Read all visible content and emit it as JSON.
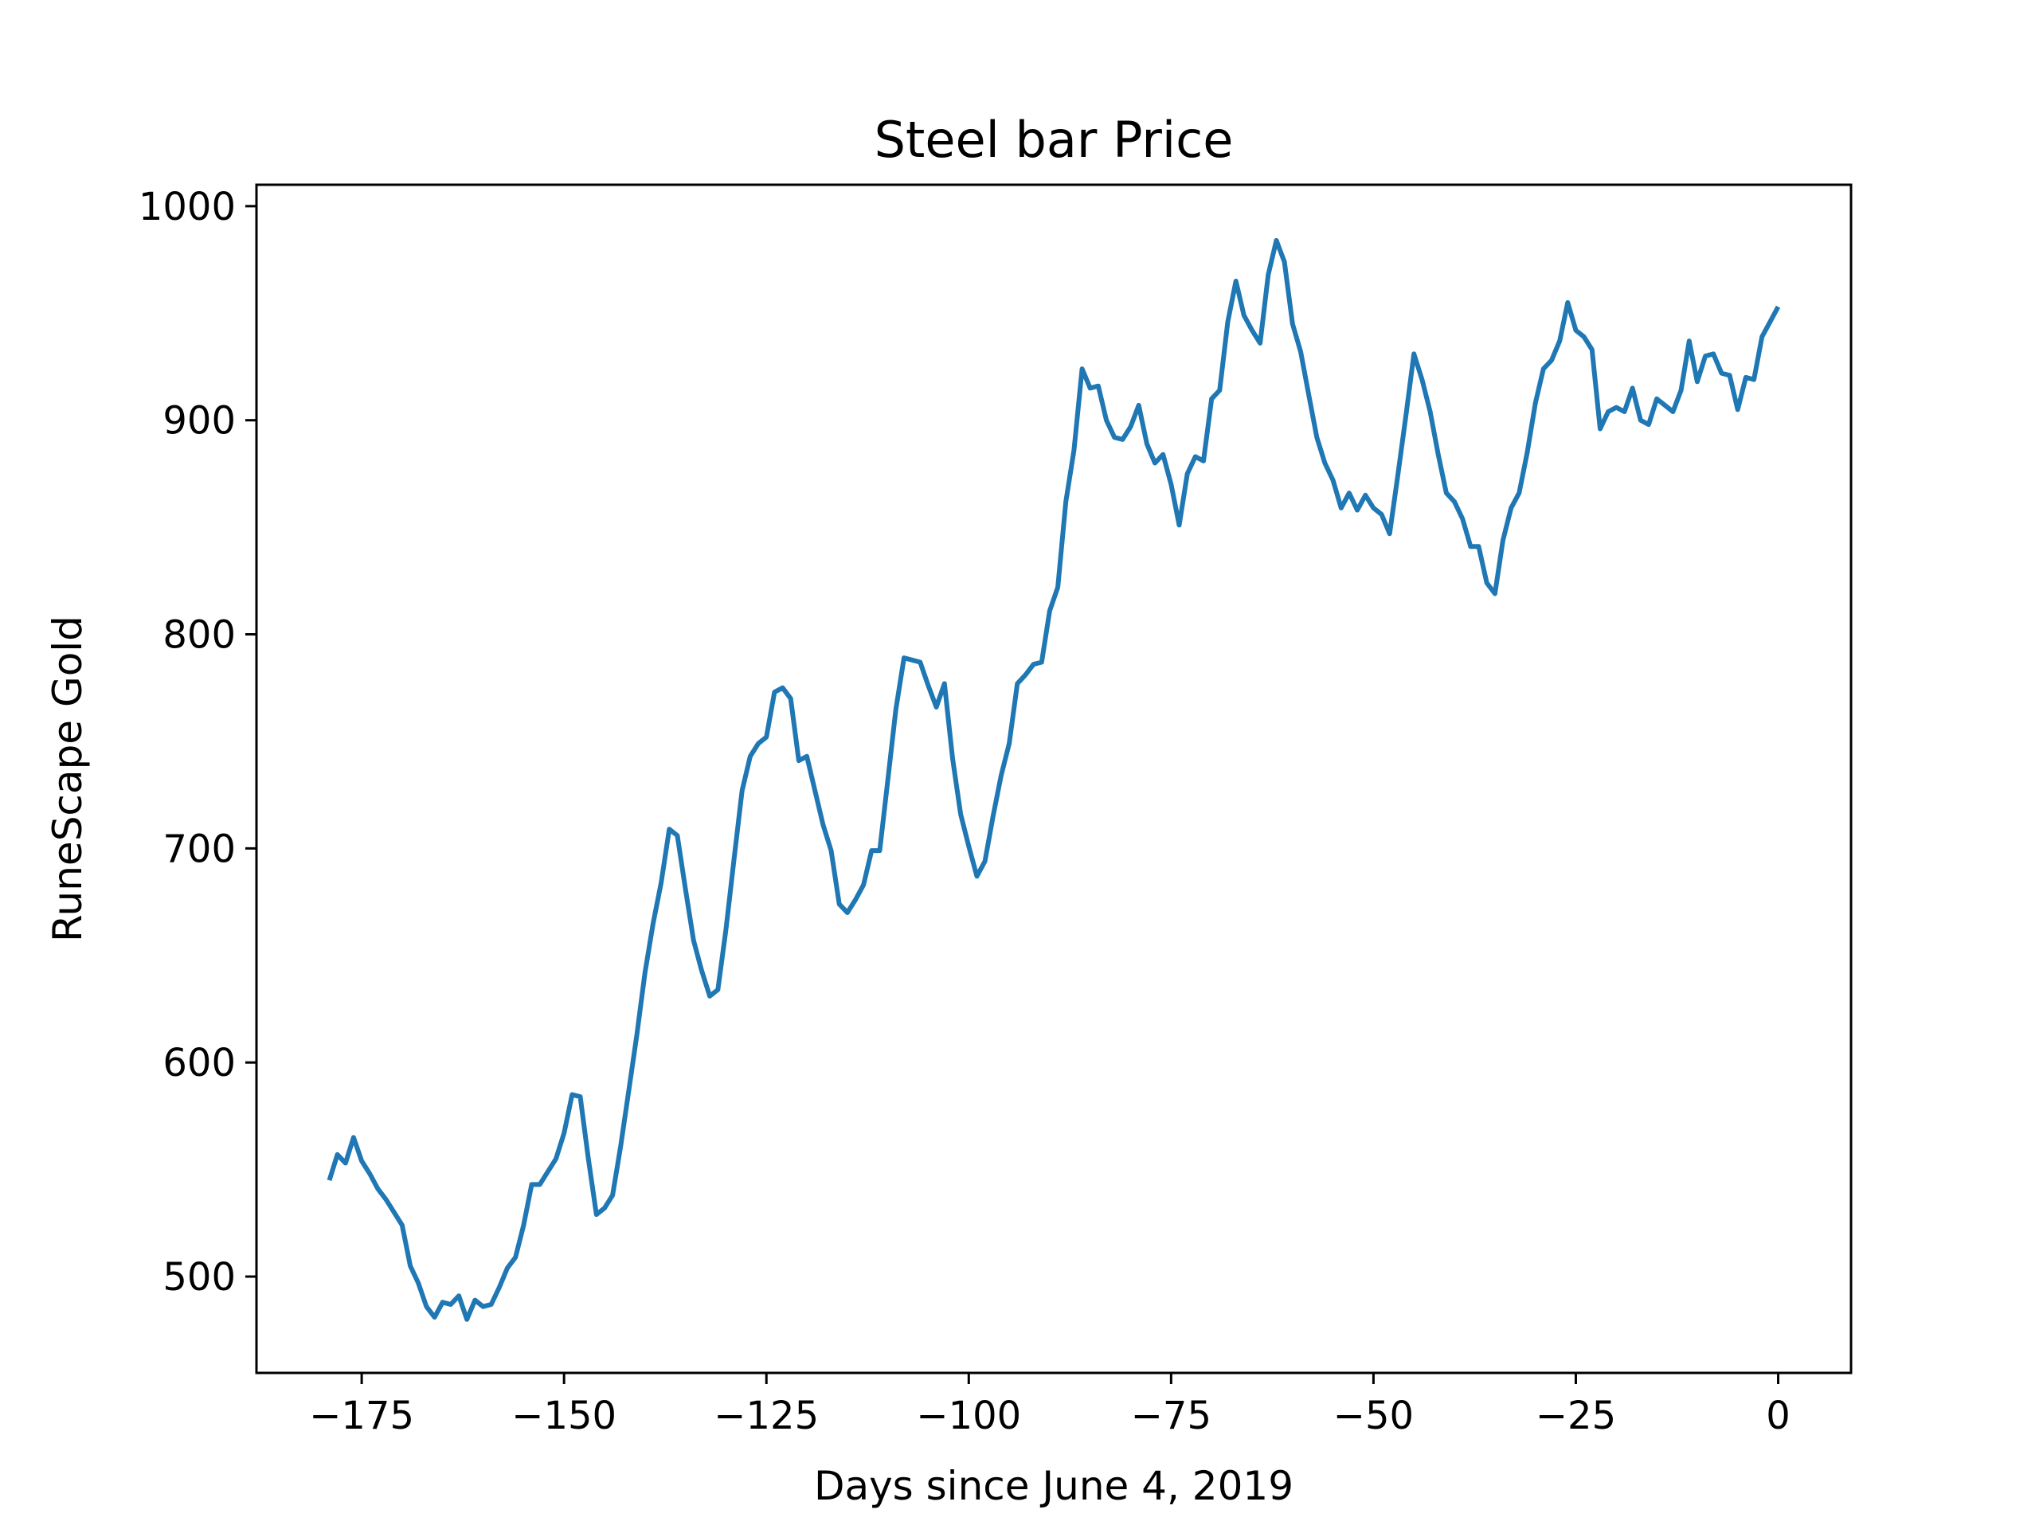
{
  "chart_data": {
    "type": "line",
    "title": "Steel bar Price",
    "xlabel": "Days since June 4, 2019",
    "ylabel": "RuneScape Gold",
    "xlim": [
      -188,
      9
    ],
    "ylim": [
      455,
      1010
    ],
    "xticks": [
      -175,
      -150,
      -125,
      -100,
      -75,
      -50,
      -25,
      0
    ],
    "xtick_labels": [
      "−175",
      "−150",
      "−125",
      "−100",
      "−75",
      "−50",
      "−25",
      "0"
    ],
    "yticks": [
      500,
      600,
      700,
      800,
      900,
      1000
    ],
    "ytick_labels": [
      "500",
      "600",
      "700",
      "800",
      "900",
      "1000"
    ],
    "grid": false,
    "series": [
      {
        "color": "#1f77b4",
        "x": [
          -179,
          -178,
          -177,
          -176,
          -175,
          -174,
          -173,
          -172,
          -171,
          -170,
          -169,
          -168,
          -167,
          -166,
          -165,
          -164,
          -163,
          -162,
          -161,
          -160,
          -159,
          -158,
          -157,
          -156,
          -155,
          -154,
          -153,
          -152,
          -151,
          -150,
          -149,
          -148,
          -147,
          -146,
          -145,
          -144,
          -143,
          -142,
          -141,
          -140,
          -139,
          -138,
          -137,
          -136,
          -135,
          -134,
          -133,
          -132,
          -131,
          -130,
          -129,
          -128,
          -127,
          -126,
          -125,
          -124,
          -123,
          -122,
          -121,
          -120,
          -119,
          -118,
          -117,
          -116,
          -115,
          -114,
          -113,
          -112,
          -111,
          -110,
          -109,
          -108,
          -107,
          -106,
          -105,
          -104,
          -103,
          -102,
          -101,
          -100,
          -99,
          -98,
          -97,
          -96,
          -95,
          -94,
          -93,
          -92,
          -91,
          -90,
          -89,
          -88,
          -87,
          -86,
          -85,
          -84,
          -83,
          -82,
          -81,
          -80,
          -79,
          -78,
          -77,
          -76,
          -75,
          -74,
          -73,
          -72,
          -71,
          -70,
          -69,
          -68,
          -67,
          -66,
          -65,
          -64,
          -63,
          -62,
          -61,
          -60,
          -59,
          -58,
          -57,
          -56,
          -55,
          -54,
          -53,
          -52,
          -51,
          -50,
          -49,
          -48,
          -47,
          -46,
          -45,
          -44,
          -43,
          -42,
          -41,
          -40,
          -39,
          -38,
          -37,
          -36,
          -35,
          -34,
          -33,
          -32,
          -31,
          -30,
          -29,
          -28,
          -27,
          -26,
          -25,
          -24,
          -23,
          -22,
          -21,
          -20,
          -19,
          -18,
          -17,
          -16,
          -15,
          -14,
          -13,
          -12,
          -11,
          -10,
          -9,
          -8,
          -7,
          -6,
          -5,
          -4,
          -3,
          -2,
          -1,
          0
        ],
        "y": [
          545,
          557,
          553,
          565,
          554,
          548,
          541,
          536,
          530,
          524,
          505,
          497,
          486,
          481,
          488,
          487,
          491,
          480,
          489,
          486,
          487,
          495,
          504,
          509,
          524,
          543,
          543,
          549,
          555,
          567,
          585,
          584,
          555,
          529,
          532,
          538,
          561,
          587,
          613,
          642,
          665,
          684,
          709,
          706,
          681,
          657,
          643,
          631,
          634,
          662,
          695,
          727,
          743,
          749,
          752,
          773,
          775,
          770,
          741,
          743,
          727,
          711,
          699,
          674,
          670,
          676,
          683,
          699,
          699,
          732,
          765,
          789,
          788,
          787,
          776,
          766,
          777,
          742,
          716,
          701,
          687,
          694,
          715,
          734,
          749,
          777,
          781,
          786,
          787,
          811,
          822,
          862,
          886,
          924,
          915,
          916,
          900,
          892,
          891,
          897,
          907,
          889,
          880,
          884,
          870,
          851,
          875,
          883,
          881,
          910,
          914,
          946,
          965,
          949,
          942,
          936,
          968,
          984,
          974,
          945,
          932,
          912,
          892,
          880,
          872,
          859,
          866,
          858,
          865,
          859,
          856,
          847,
          874,
          902,
          931,
          919,
          904,
          884,
          866,
          862,
          854,
          841,
          841,
          824,
          819,
          844,
          859,
          866,
          885,
          908,
          924,
          928,
          937,
          955,
          942,
          939,
          933,
          896,
          904,
          906,
          904,
          915,
          900,
          898,
          910,
          907,
          904,
          914,
          937,
          918,
          930,
          931,
          922,
          921,
          905,
          920,
          919,
          939,
          946,
          953
        ]
      }
    ]
  }
}
